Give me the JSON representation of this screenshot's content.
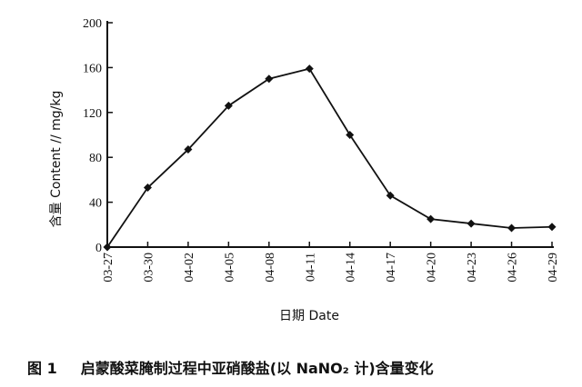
{
  "chart_data": {
    "type": "line",
    "x": [
      "03-27",
      "03-30",
      "04-02",
      "04-05",
      "04-08",
      "04-11",
      "04-14",
      "04-17",
      "04-20",
      "04-23",
      "04-26",
      "04-29"
    ],
    "series": [
      {
        "values": [
          0,
          53,
          87,
          126,
          150,
          159,
          100,
          46,
          25,
          21,
          17,
          18
        ]
      }
    ],
    "xlabel": "日期 Date",
    "ylabel": "含量 Content // mg/kg",
    "ylim": [
      0,
      200
    ],
    "yticks": [
      0,
      40,
      80,
      120,
      160,
      200
    ],
    "grid": false,
    "marker": "diamond",
    "line_color": "#111111"
  },
  "caption": {
    "number": "图 1",
    "text": "启蒙酸菜腌制过程中亚硝酸盐(以 NaNO₂ 计)含量变化"
  }
}
